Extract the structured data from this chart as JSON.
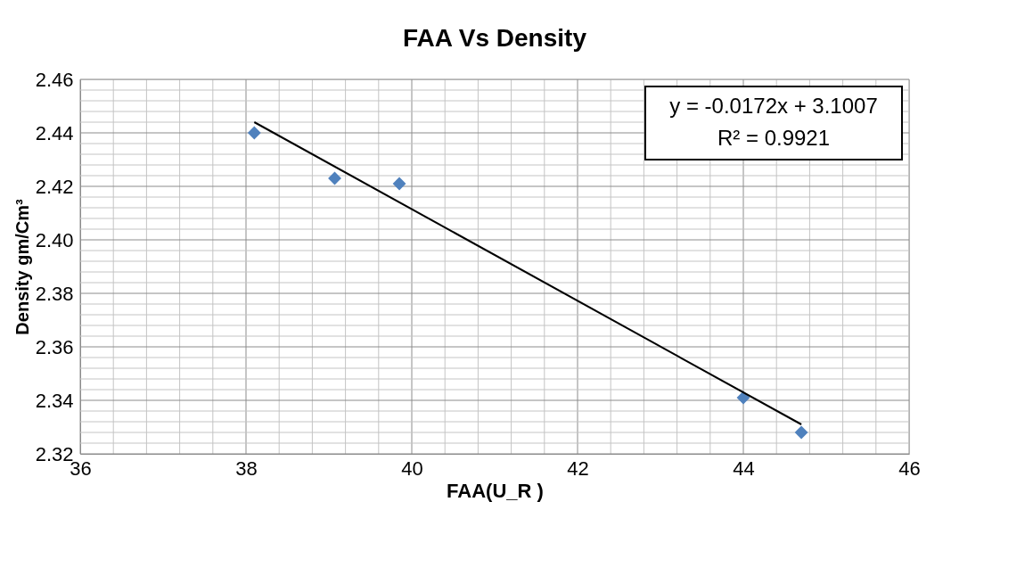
{
  "chart_data": {
    "type": "scatter",
    "title": "FAA Vs Density",
    "xlabel": "FAA(U_R )",
    "ylabel": "Density gm/Cm³",
    "x": [
      38.1,
      39.07,
      39.85,
      44.0,
      44.7
    ],
    "series": [
      {
        "color": "#4f81bd",
        "marker": "diamond",
        "values": [
          2.44,
          2.423,
          2.421,
          2.341,
          2.328
        ]
      },
      {
        "type": "line",
        "color": "#000000",
        "x": [
          38.1,
          44.7
        ],
        "values": [
          2.444,
          2.331
        ],
        "line_style": "solid"
      }
    ],
    "xlim": [
      36,
      46
    ],
    "xticks": [
      36,
      {
        "value": 36.4,
        "label": null
      },
      {
        "value": 36.8,
        "label": null
      },
      {
        "value": 37.2,
        "label": null
      },
      {
        "value": 37.6,
        "label": null
      },
      38,
      {
        "value": 38.4,
        "label": null
      },
      {
        "value": 38.8,
        "label": null
      },
      {
        "value": 39.2,
        "label": null
      },
      {
        "value": 39.6,
        "label": null
      },
      40,
      {
        "value": 40.4,
        "label": null
      },
      {
        "value": 40.8,
        "label": null
      },
      {
        "value": 41.2,
        "label": null
      },
      {
        "value": 41.6,
        "label": null
      },
      42,
      {
        "value": 42.4,
        "label": null
      },
      {
        "value": 42.8,
        "label": null
      },
      {
        "value": 43.2,
        "label": null
      },
      {
        "value": 43.6,
        "label": null
      },
      44,
      {
        "value": 44.4,
        "label": null
      },
      {
        "value": 44.8,
        "label": null
      },
      {
        "value": 45.2,
        "label": null
      },
      {
        "value": 45.6,
        "label": null
      },
      46
    ],
    "ylim": [
      2.32,
      2.46
    ],
    "yticks": [
      {
        "value": 2.32,
        "label": "2.32"
      },
      {
        "value": 2.324,
        "label": null
      },
      {
        "value": 2.328,
        "label": null
      },
      {
        "value": 2.332,
        "label": null
      },
      {
        "value": 2.336,
        "label": null
      },
      2.34,
      {
        "value": 2.344,
        "label": null
      },
      {
        "value": 2.348,
        "label": null
      },
      {
        "value": 2.352,
        "label": null
      },
      {
        "value": 2.356,
        "label": null
      },
      2.36,
      {
        "value": 2.364,
        "label": null
      },
      {
        "value": 2.368,
        "label": null
      },
      {
        "value": 2.372,
        "label": null
      },
      {
        "value": 2.376,
        "label": null
      },
      2.38,
      {
        "value": 2.384,
        "label": null
      },
      {
        "value": 2.388,
        "label": null
      },
      {
        "value": 2.392,
        "label": null
      },
      {
        "value": 2.396,
        "label": null
      },
      {
        "value": 2.4,
        "label": "2.40"
      },
      {
        "value": 2.404,
        "label": null
      },
      {
        "value": 2.408,
        "label": null
      },
      {
        "value": 2.412,
        "label": null
      },
      {
        "value": 2.416,
        "label": null
      },
      2.42,
      {
        "value": 2.424,
        "label": null
      },
      {
        "value": 2.428,
        "label": null
      },
      {
        "value": 2.432,
        "label": null
      },
      {
        "value": 2.436,
        "label": null
      },
      2.44,
      {
        "value": 2.444,
        "label": null
      },
      {
        "value": 2.448,
        "label": null
      },
      {
        "value": 2.452,
        "label": null
      },
      {
        "value": 2.456,
        "label": null
      },
      2.46
    ],
    "grid": true,
    "legend": false,
    "annotations": [
      "y = -0.0172x + 3.1007",
      "R² = 0.9921"
    ]
  }
}
